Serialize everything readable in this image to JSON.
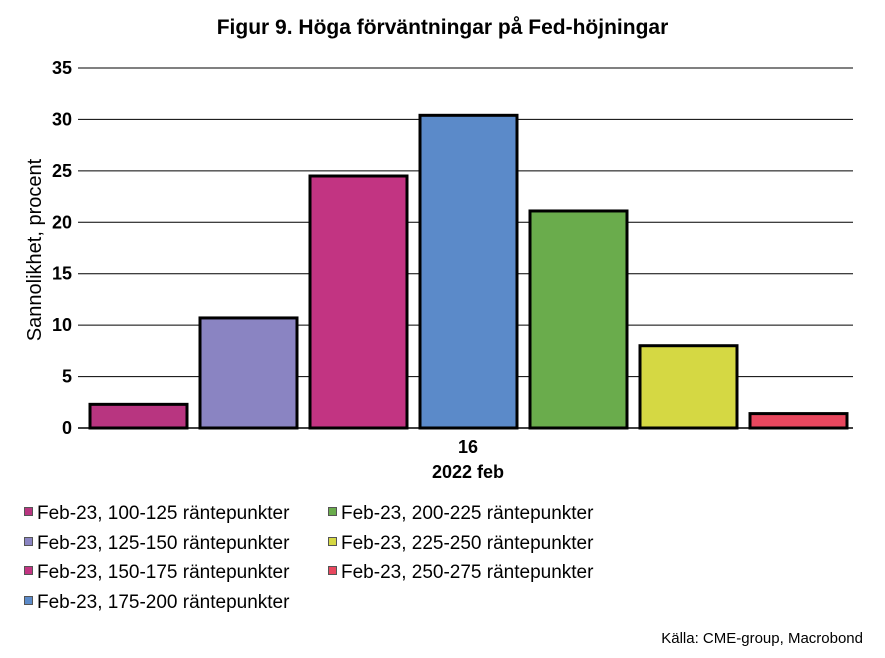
{
  "chart_data": {
    "type": "bar",
    "title": "Figur 9. Höga förväntningar på Fed-höjningar",
    "xlabel": "2022 feb",
    "ylabel": "Sannolikhet, procent",
    "categories": [
      "16"
    ],
    "ylim": [
      0,
      35
    ],
    "yticks": [
      0,
      5,
      10,
      15,
      20,
      25,
      30,
      35
    ],
    "grid": true,
    "legend_position": "bottom",
    "series": [
      {
        "name": "Feb-23, 100-125 räntepunkter",
        "values": [
          2.3
        ],
        "color": "#b83580"
      },
      {
        "name": "Feb-23, 125-150 räntepunkter",
        "values": [
          10.7
        ],
        "color": "#8a84c2"
      },
      {
        "name": "Feb-23, 150-175 räntepunkter",
        "values": [
          24.5
        ],
        "color": "#c23482"
      },
      {
        "name": "Feb-23, 175-200 räntepunkter",
        "values": [
          30.4
        ],
        "color": "#5b8ac9"
      },
      {
        "name": "Feb-23, 200-225 räntepunkter",
        "values": [
          21.1
        ],
        "color": "#6aac4c"
      },
      {
        "name": "Feb-23, 225-250 räntepunkter",
        "values": [
          8.0
        ],
        "color": "#d5d843"
      },
      {
        "name": "Feb-23, 250-275 räntepunkter",
        "values": [
          1.4
        ],
        "color": "#e8475e"
      }
    ]
  },
  "source": "Källa: CME-group, Macrobond"
}
